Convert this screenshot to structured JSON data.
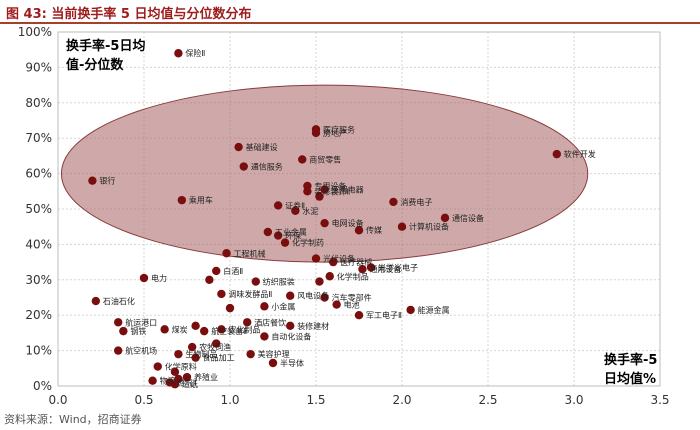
{
  "header": {
    "title": "图 43:  当前换手率 5 日均值与分位数分布",
    "source": "资料来源：Wind，招商证券"
  },
  "colors": {
    "title": "#9d1c1c",
    "marker": "#7a0d0d",
    "ellipse_fill": "#a86262",
    "grid": "#d6d6d6"
  },
  "chart_data": {
    "type": "scatter",
    "title": "",
    "ylabel": [
      "换手率-5日均",
      "值-分位数"
    ],
    "xlabel": [
      "换手率-5",
      "日均值%"
    ],
    "xlim": [
      0,
      3.5
    ],
    "ylim": [
      0,
      100
    ],
    "x_ticks": [
      "0.0",
      "0.5",
      "1.0",
      "1.5",
      "2.0",
      "2.5",
      "3.0",
      "3.5"
    ],
    "y_ticks": [
      "0%",
      "10%",
      "20%",
      "30%",
      "40%",
      "50%",
      "60%",
      "70%",
      "80%",
      "90%",
      "100%"
    ],
    "grid": true,
    "highlight_ellipse": {
      "center": [
        1.55,
        60
      ],
      "radius_x": 1.53,
      "radius_y": 25
    },
    "points": [
      {
        "label": "保险Ⅱ",
        "x": 0.7,
        "y": 94
      },
      {
        "label": "软件开发",
        "x": 2.9,
        "y": 65.5
      },
      {
        "label": "银行",
        "x": 0.2,
        "y": 58
      },
      {
        "label": "房地产",
        "x": 1.5,
        "y": 71.5
      },
      {
        "label": "医疗服务",
        "x": 1.5,
        "y": 72.5
      },
      {
        "label": "基础建设",
        "x": 1.05,
        "y": 67.5
      },
      {
        "label": "商贸零售",
        "x": 1.42,
        "y": 64
      },
      {
        "label": "通信服务",
        "x": 1.08,
        "y": 62
      },
      {
        "label": "专用设备",
        "x": 1.45,
        "y": 56.5
      },
      {
        "label": "装修装饰Ⅱ",
        "x": 1.45,
        "y": 55
      },
      {
        "label": "家用电器",
        "x": 1.55,
        "y": 55.5
      },
      {
        "label": "",
        "x": 1.52,
        "y": 53.5
      },
      {
        "label": "乘用车",
        "x": 0.72,
        "y": 52.5
      },
      {
        "label": "证券Ⅱ",
        "x": 1.28,
        "y": 51
      },
      {
        "label": "水泥",
        "x": 1.38,
        "y": 49.5
      },
      {
        "label": "消费电子",
        "x": 1.95,
        "y": 52
      },
      {
        "label": "电网设备",
        "x": 1.55,
        "y": 46
      },
      {
        "label": "计算机设备",
        "x": 2.0,
        "y": 45
      },
      {
        "label": "通信设备",
        "x": 2.25,
        "y": 47.5
      },
      {
        "label": "传媒",
        "x": 1.75,
        "y": 44
      },
      {
        "label": "工业金属",
        "x": 1.22,
        "y": 43.5
      },
      {
        "label": "环保",
        "x": 1.28,
        "y": 42.5
      },
      {
        "label": "化学制药",
        "x": 1.32,
        "y": 40.5
      },
      {
        "label": "工程机械",
        "x": 0.98,
        "y": 37.5
      },
      {
        "label": "光伏设备",
        "x": 1.5,
        "y": 36
      },
      {
        "label": "医疗器械",
        "x": 1.6,
        "y": 35
      },
      {
        "label": "通用设备",
        "x": 1.77,
        "y": 33
      },
      {
        "label": "光学光电子",
        "x": 1.82,
        "y": 33.5
      },
      {
        "label": "电力",
        "x": 0.5,
        "y": 30.5
      },
      {
        "label": "白酒Ⅱ",
        "x": 0.92,
        "y": 32.5
      },
      {
        "label": "",
        "x": 0.88,
        "y": 30
      },
      {
        "label": "纺织服装",
        "x": 1.15,
        "y": 29.5
      },
      {
        "label": "化学制品",
        "x": 1.58,
        "y": 31
      },
      {
        "label": "",
        "x": 1.52,
        "y": 29.5
      },
      {
        "label": "石油石化",
        "x": 0.22,
        "y": 24
      },
      {
        "label": "调味发酵品Ⅱ",
        "x": 0.95,
        "y": 26
      },
      {
        "label": "风电设备",
        "x": 1.35,
        "y": 25.5
      },
      {
        "label": "汽车零部件",
        "x": 1.55,
        "y": 25
      },
      {
        "label": "电池",
        "x": 1.62,
        "y": 23
      },
      {
        "label": "小金属",
        "x": 1.2,
        "y": 22.5
      },
      {
        "label": "",
        "x": 1.0,
        "y": 22
      },
      {
        "label": "航运港口",
        "x": 0.35,
        "y": 18
      },
      {
        "label": "钢铁",
        "x": 0.38,
        "y": 15.5
      },
      {
        "label": "煤炭",
        "x": 0.62,
        "y": 16
      },
      {
        "label": "",
        "x": 0.8,
        "y": 17
      },
      {
        "label": "航空装备Ⅱ",
        "x": 0.85,
        "y": 15.5
      },
      {
        "label": "农化制品",
        "x": 0.95,
        "y": 16
      },
      {
        "label": "酒店餐饮",
        "x": 1.1,
        "y": 18
      },
      {
        "label": "装修建材",
        "x": 1.35,
        "y": 17
      },
      {
        "label": "军工电子Ⅱ",
        "x": 1.75,
        "y": 20
      },
      {
        "label": "能源金属",
        "x": 2.05,
        "y": 21.5
      },
      {
        "label": "自动化设备",
        "x": 1.2,
        "y": 14
      },
      {
        "label": "",
        "x": 0.92,
        "y": 12
      },
      {
        "label": "农牧饲渔",
        "x": 0.78,
        "y": 11
      },
      {
        "label": "航空机场",
        "x": 0.35,
        "y": 10
      },
      {
        "label": "生物制品",
        "x": 0.7,
        "y": 9
      },
      {
        "label": "食品加工",
        "x": 0.8,
        "y": 8
      },
      {
        "label": "美容护理",
        "x": 1.12,
        "y": 9
      },
      {
        "label": "半导体",
        "x": 1.25,
        "y": 6.5
      },
      {
        "label": "化学原料",
        "x": 0.58,
        "y": 5.5
      },
      {
        "label": "",
        "x": 0.68,
        "y": 4
      },
      {
        "label": "养殖业",
        "x": 0.75,
        "y": 2.5
      },
      {
        "label": "物流",
        "x": 0.55,
        "y": 1.5
      },
      {
        "label": "燃气Ⅱ",
        "x": 0.65,
        "y": 1
      },
      {
        "label": "",
        "x": 0.7,
        "y": 2
      },
      {
        "label": "造纸",
        "x": 0.68,
        "y": 0.5
      }
    ]
  }
}
